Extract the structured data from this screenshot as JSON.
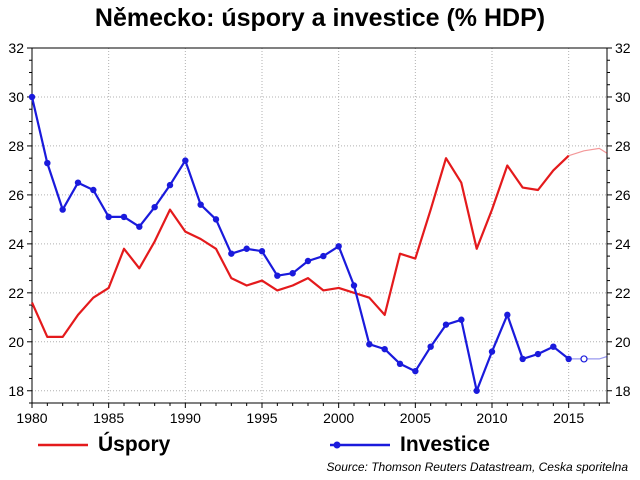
{
  "title": "Německo: úspory a investice (% HDP)",
  "source": "Source: Thomson Reuters Datastream, Ceska sporitelna",
  "legend": {
    "savings": "Úspory",
    "investment": "Investice"
  },
  "colors": {
    "savings": "#e41a1c",
    "investment": "#1a1adc",
    "grid": "#b0b0b0"
  },
  "chart_data": {
    "type": "line",
    "xlim": [
      1980,
      2017.5
    ],
    "ylim": [
      17.5,
      32
    ],
    "x_ticks": [
      1980,
      1985,
      1990,
      1995,
      2000,
      2005,
      2010,
      2015
    ],
    "y_ticks": [
      18,
      20,
      22,
      24,
      26,
      28,
      30,
      32
    ],
    "grid": true,
    "axes": "left and right y-axes",
    "series": [
      {
        "name": "Úspory",
        "key": "savings",
        "marker": "none",
        "x": [
          1980,
          1981,
          1982,
          1983,
          1984,
          1985,
          1986,
          1987,
          1988,
          1989,
          1990,
          1991,
          1992,
          1993,
          1994,
          1995,
          1996,
          1997,
          1998,
          1999,
          2000,
          2001,
          2002,
          2003,
          2004,
          2005,
          2006,
          2007,
          2008,
          2009,
          2010,
          2011,
          2012,
          2013,
          2014,
          2015
        ],
        "values": [
          21.6,
          20.2,
          20.2,
          21.1,
          21.8,
          22.2,
          23.8,
          23.0,
          24.1,
          25.4,
          24.5,
          24.2,
          23.8,
          22.6,
          22.3,
          22.5,
          22.1,
          22.3,
          22.6,
          22.1,
          22.2,
          22.0,
          21.8,
          21.1,
          23.6,
          23.4,
          25.4,
          27.5,
          26.5,
          23.8,
          25.4,
          27.2,
          26.3,
          26.2,
          27.0,
          27.6
        ],
        "forecast": {
          "x": [
            2015,
            2016,
            2017,
            2017.5
          ],
          "values": [
            27.6,
            27.8,
            27.9,
            27.7
          ]
        }
      },
      {
        "name": "Investice",
        "key": "investment",
        "marker": "circle",
        "x": [
          1980,
          1981,
          1982,
          1983,
          1984,
          1985,
          1986,
          1987,
          1988,
          1989,
          1990,
          1991,
          1992,
          1993,
          1994,
          1995,
          1996,
          1997,
          1998,
          1999,
          2000,
          2001,
          2002,
          2003,
          2004,
          2005,
          2006,
          2007,
          2008,
          2009,
          2010,
          2011,
          2012,
          2013,
          2014,
          2015
        ],
        "values": [
          30.0,
          27.3,
          25.4,
          26.5,
          26.2,
          25.1,
          25.1,
          24.7,
          25.5,
          26.4,
          27.4,
          25.6,
          25.0,
          23.6,
          23.8,
          23.7,
          22.7,
          22.8,
          23.3,
          23.5,
          23.9,
          22.3,
          19.9,
          19.7,
          19.1,
          18.8,
          19.8,
          20.7,
          20.9,
          18.0,
          19.6,
          21.1,
          19.3,
          19.5,
          19.8,
          19.3
        ],
        "forecast": {
          "x": [
            2015,
            2016,
            2017,
            2017.5
          ],
          "values": [
            19.3,
            19.3,
            19.3,
            19.4
          ]
        }
      }
    ]
  }
}
